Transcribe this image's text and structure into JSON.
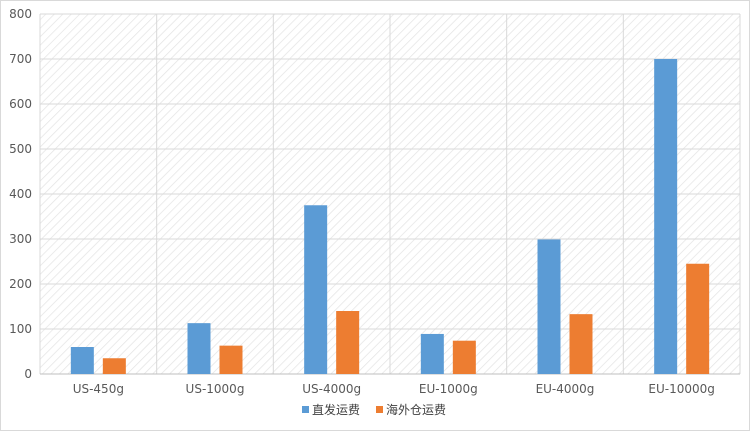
{
  "chart_data": {
    "type": "bar",
    "categories": [
      "US-450g",
      "US-1000g",
      "US-4000g",
      "EU-1000g",
      "EU-4000g",
      "EU-10000g"
    ],
    "series": [
      {
        "name": "直发运费",
        "values": [
          60,
          113,
          375,
          89,
          299,
          700
        ],
        "color": "#5b9bd5"
      },
      {
        "name": "海外仓运费",
        "values": [
          35,
          63,
          140,
          74,
          133,
          245
        ],
        "color": "#ed7d31"
      }
    ],
    "yticks": [
      "0",
      "100",
      "200",
      "300",
      "400",
      "500",
      "600",
      "700",
      "800"
    ],
    "ylim": [
      0,
      800
    ],
    "grid": true,
    "legend_position": "bottom"
  }
}
